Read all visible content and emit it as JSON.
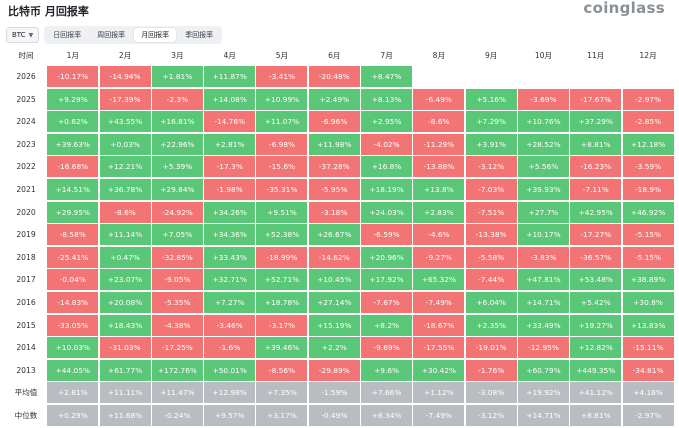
{
  "title": "比特币 月回报率",
  "logo": "coinglass",
  "coin": "BTC",
  "tabs": [
    {
      "label": "日回报率",
      "active": false
    },
    {
      "label": "周回报率",
      "active": false
    },
    {
      "label": "月回报率",
      "active": true
    },
    {
      "label": "季回报率",
      "active": false
    }
  ],
  "header": [
    "时间",
    "1月",
    "2月",
    "3月",
    "4月",
    "5月",
    "6月",
    "7月",
    "8月",
    "9月",
    "10月",
    "11月",
    "12月"
  ],
  "rows": [
    {
      "year": "2026",
      "values": [
        "-10.17%",
        "-14.94%",
        "+1.81%",
        "+11.87%",
        "-3.41%",
        "-20.48%",
        "+8.47%",
        "",
        "",
        "",
        "",
        ""
      ]
    },
    {
      "year": "2025",
      "values": [
        "+9.29%",
        "-17.39%",
        "-2.3%",
        "+14.08%",
        "+10.99%",
        "+2.49%",
        "+8.13%",
        "-6.49%",
        "+5.16%",
        "-3.69%",
        "-17.67%",
        "-2.97%"
      ]
    },
    {
      "year": "2024",
      "values": [
        "+0.62%",
        "+43.55%",
        "+16.81%",
        "-14.76%",
        "+11.07%",
        "-6.96%",
        "+2.95%",
        "-8.6%",
        "+7.29%",
        "+10.76%",
        "+37.29%",
        "-2.85%"
      ]
    },
    {
      "year": "2023",
      "values": [
        "+39.63%",
        "+0.03%",
        "+22.96%",
        "+2.81%",
        "-6.98%",
        "+11.98%",
        "-4.02%",
        "-11.29%",
        "+3.91%",
        "+28.52%",
        "+8.81%",
        "+12.18%"
      ]
    },
    {
      "year": "2022",
      "values": [
        "-16.68%",
        "+12.21%",
        "+5.39%",
        "-17.3%",
        "-15.6%",
        "-37.28%",
        "+16.8%",
        "-13.88%",
        "-3.12%",
        "+5.56%",
        "-16.23%",
        "-3.59%"
      ]
    },
    {
      "year": "2021",
      "values": [
        "+14.51%",
        "+36.78%",
        "+29.84%",
        "-1.98%",
        "-35.31%",
        "-5.95%",
        "+18.19%",
        "+13.8%",
        "-7.03%",
        "+39.93%",
        "-7.11%",
        "-18.9%"
      ]
    },
    {
      "year": "2020",
      "values": [
        "+29.95%",
        "-8.6%",
        "-24.92%",
        "+34.26%",
        "+9.51%",
        "-3.18%",
        "+24.03%",
        "+2.83%",
        "-7.51%",
        "+27.7%",
        "+42.95%",
        "+46.92%"
      ]
    },
    {
      "year": "2019",
      "values": [
        "-8.58%",
        "+11.14%",
        "+7.05%",
        "+34.36%",
        "+52.38%",
        "+26.67%",
        "-6.59%",
        "-4.6%",
        "-13.38%",
        "+10.17%",
        "-17.27%",
        "-5.15%"
      ]
    },
    {
      "year": "2018",
      "values": [
        "-25.41%",
        "+0.47%",
        "-32.85%",
        "+33.43%",
        "-18.99%",
        "-14.62%",
        "+20.96%",
        "-9.27%",
        "-5.58%",
        "-3.83%",
        "-36.57%",
        "-5.15%"
      ]
    },
    {
      "year": "2017",
      "values": [
        "-0.04%",
        "+23.07%",
        "-9.05%",
        "+32.71%",
        "+52.71%",
        "+10.45%",
        "+17.92%",
        "+65.32%",
        "-7.44%",
        "+47.81%",
        "+53.48%",
        "+38.89%"
      ]
    },
    {
      "year": "2016",
      "values": [
        "-14.83%",
        "+20.08%",
        "-5.35%",
        "+7.27%",
        "+18.78%",
        "+27.14%",
        "-7.67%",
        "-7.49%",
        "+6.04%",
        "+14.71%",
        "+5.42%",
        "+30.8%"
      ]
    },
    {
      "year": "2015",
      "values": [
        "-33.05%",
        "+18.43%",
        "-4.38%",
        "-3.46%",
        "-3.17%",
        "+15.19%",
        "+8.2%",
        "-18.67%",
        "+2.35%",
        "+33.49%",
        "+19.27%",
        "+13.83%"
      ]
    },
    {
      "year": "2014",
      "values": [
        "+10.03%",
        "-31.03%",
        "-17.25%",
        "-1.6%",
        "+39.46%",
        "+2.2%",
        "-9.69%",
        "-17.55%",
        "-19.01%",
        "-12.95%",
        "+12.82%",
        "-15.11%"
      ]
    },
    {
      "year": "2013",
      "values": [
        "+44.05%",
        "+61.77%",
        "+172.76%",
        "+50.01%",
        "-8.56%",
        "-29.89%",
        "+9.6%",
        "+30.42%",
        "-1.76%",
        "+60.79%",
        "+449.35%",
        "-34.81%"
      ]
    }
  ],
  "summary": [
    {
      "label": "平均值",
      "values": [
        "+2.81%",
        "+11.11%",
        "+11.47%",
        "+12.98%",
        "+7.35%",
        "-1.59%",
        "+7.66%",
        "+1.12%",
        "-3.08%",
        "+19.92%",
        "+41.12%",
        "+4.16%"
      ]
    },
    {
      "label": "中位数",
      "values": [
        "+0.29%",
        "+11.68%",
        "-0.24%",
        "+9.57%",
        "+3.17%",
        "-0.49%",
        "+8.34%",
        "-7.49%",
        "-3.12%",
        "+14.71%",
        "+8.81%",
        "-2.97%"
      ]
    }
  ],
  "colors": {
    "positive": "#5ac677",
    "negative": "#f27474",
    "summary": "#b9bcc1"
  }
}
